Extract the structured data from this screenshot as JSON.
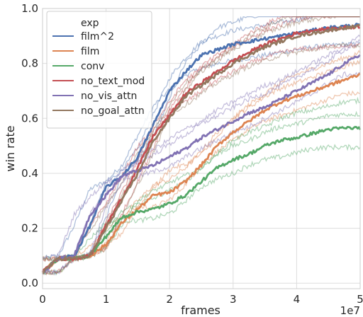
{
  "chart_data": {
    "type": "line",
    "xlabel": "frames",
    "ylabel": "win rate",
    "x_multiplier_label": "1e7",
    "xlim": [
      0,
      5
    ],
    "ylim": [
      -0.02,
      1.0
    ],
    "xticks": [
      "0",
      "1",
      "2",
      "3",
      "4",
      "5"
    ],
    "yticks": [
      "0.0",
      "0.2",
      "0.4",
      "0.6",
      "0.8",
      "1.0"
    ],
    "grid": true,
    "legend": {
      "title": "exp",
      "placement": "top-left",
      "entries": [
        "film^2",
        "film",
        "conv",
        "no_text_mod",
        "no_vis_attn",
        "no_goal_attn"
      ]
    },
    "x": [
      0,
      0.25,
      0.5,
      0.75,
      1.0,
      1.25,
      1.5,
      1.75,
      2.0,
      2.25,
      2.5,
      2.75,
      3.0,
      3.25,
      3.5,
      3.75,
      4.0,
      4.25,
      4.5,
      4.75,
      5.0
    ],
    "series": [
      {
        "name": "film^2",
        "color": "#4c72b0",
        "values": [
          0.04,
          0.09,
          0.1,
          0.21,
          0.35,
          0.39,
          0.46,
          0.58,
          0.7,
          0.77,
          0.83,
          0.85,
          0.87,
          0.88,
          0.89,
          0.9,
          0.91,
          0.92,
          0.93,
          0.935,
          0.94
        ]
      },
      {
        "name": "film",
        "color": "#dd8452",
        "values": [
          0.04,
          0.09,
          0.09,
          0.1,
          0.14,
          0.22,
          0.27,
          0.32,
          0.33,
          0.37,
          0.43,
          0.5,
          0.55,
          0.59,
          0.63,
          0.66,
          0.68,
          0.7,
          0.72,
          0.74,
          0.76
        ]
      },
      {
        "name": "conv",
        "color": "#55a868",
        "values": [
          0.04,
          0.09,
          0.09,
          0.1,
          0.17,
          0.24,
          0.26,
          0.27,
          0.29,
          0.32,
          0.37,
          0.42,
          0.45,
          0.47,
          0.5,
          0.52,
          0.53,
          0.545,
          0.56,
          0.565,
          0.565
        ]
      },
      {
        "name": "no_text_mod",
        "color": "#c44e52",
        "values": [
          0.04,
          0.09,
          0.09,
          0.1,
          0.21,
          0.31,
          0.42,
          0.54,
          0.61,
          0.69,
          0.73,
          0.77,
          0.81,
          0.84,
          0.87,
          0.89,
          0.91,
          0.92,
          0.925,
          0.93,
          0.935
        ]
      },
      {
        "name": "no_vis_attn",
        "color": "#8172b3",
        "values": [
          0.04,
          0.09,
          0.1,
          0.25,
          0.32,
          0.39,
          0.41,
          0.43,
          0.46,
          0.49,
          0.53,
          0.56,
          0.59,
          0.62,
          0.64,
          0.67,
          0.7,
          0.73,
          0.76,
          0.8,
          0.83
        ]
      },
      {
        "name": "no_goal_attn",
        "color": "#937860",
        "values": [
          0.04,
          0.09,
          0.09,
          0.1,
          0.2,
          0.3,
          0.4,
          0.52,
          0.6,
          0.68,
          0.72,
          0.76,
          0.8,
          0.83,
          0.86,
          0.88,
          0.9,
          0.91,
          0.92,
          0.93,
          0.935
        ]
      }
    ]
  }
}
